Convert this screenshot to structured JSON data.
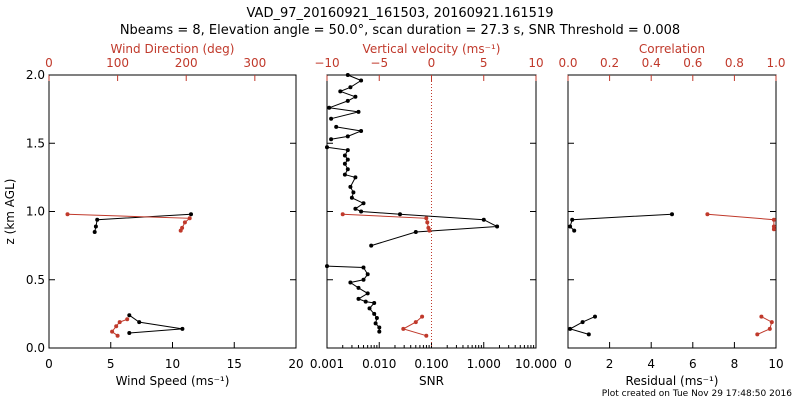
{
  "title_line1": "VAD_97_20160921_161503, 20160921.161519",
  "title_line2": "Nbeams = 8, Elevation angle = 50.0°, scan duration = 27.3 s, SNR Threshold = 0.008",
  "footer": "Plot created on Tue Nov 29 17:48:50 2016",
  "colors": {
    "primary": "#000000",
    "secondary": "#c0392b"
  },
  "chart_data": [
    {
      "type": "line",
      "name": "wind",
      "ylabel": "z (km AGL)",
      "ylim": [
        0,
        2.0
      ],
      "yticks": [
        "0.0",
        "0.5",
        "1.0",
        "1.5",
        "2.0"
      ],
      "ytick_values": [
        0,
        0.5,
        1.0,
        1.5,
        2.0
      ],
      "bottom_axis": {
        "label": "Wind Speed (ms⁻¹)",
        "range": [
          0,
          20
        ],
        "ticks": [
          "0",
          "5",
          "10",
          "15",
          "20"
        ],
        "tick_values": [
          0,
          5,
          10,
          15,
          20
        ]
      },
      "top_axis": {
        "label": "Wind Direction (deg)",
        "range": [
          0,
          360
        ],
        "ticks": [
          "0",
          "100",
          "200",
          "300"
        ],
        "tick_values": [
          0,
          100,
          200,
          300
        ]
      },
      "series": [
        {
          "name": "Wind Speed",
          "axis": "bottom",
          "color": "black",
          "segments": [
            [
              [
                11.5,
                0.98
              ],
              [
                3.9,
                0.94
              ],
              [
                3.8,
                0.89
              ],
              [
                3.7,
                0.85
              ]
            ],
            [
              [
                6.5,
                0.11
              ],
              [
                10.8,
                0.14
              ],
              [
                7.3,
                0.19
              ],
              [
                6.5,
                0.24
              ]
            ]
          ]
        },
        {
          "name": "Wind Direction",
          "axis": "top",
          "color": "red",
          "segments": [
            [
              [
                27,
                0.98
              ],
              [
                205,
                0.95
              ],
              [
                198,
                0.92
              ],
              [
                194,
                0.88
              ],
              [
                192,
                0.86
              ]
            ],
            [
              [
                100,
                0.09
              ],
              [
                92,
                0.12
              ],
              [
                98,
                0.16
              ],
              [
                103,
                0.19
              ],
              [
                114,
                0.21
              ]
            ]
          ]
        }
      ]
    },
    {
      "type": "line",
      "name": "snr",
      "ylim": [
        0,
        2.0
      ],
      "bottom_axis": {
        "label": "SNR",
        "scale": "log",
        "range": [
          0.001,
          10
        ],
        "ticks": [
          "0.001",
          "0.010",
          "0.100",
          "1.000",
          "10.000"
        ],
        "tick_values": [
          0.001,
          0.01,
          0.1,
          1,
          10
        ]
      },
      "top_axis": {
        "label": "Vertical velocity (ms⁻¹)",
        "range": [
          -10,
          10
        ],
        "ticks": [
          "−10",
          "−5",
          "0",
          "5",
          "10"
        ],
        "tick_values": [
          -10,
          -5,
          0,
          5,
          10
        ]
      },
      "reference_line": {
        "axis": "top",
        "value": 0,
        "style": "dotted",
        "color": "red"
      },
      "series": [
        {
          "name": "SNR",
          "axis": "bottom",
          "color": "black",
          "segments": [
            [
              [
                0.0025,
                2.0
              ],
              [
                0.0045,
                1.96
              ],
              [
                0.0028,
                1.91
              ],
              [
                0.0018,
                1.88
              ],
              [
                0.0035,
                1.84
              ],
              [
                0.0025,
                1.81
              ],
              [
                0.0011,
                1.76
              ],
              [
                0.004,
                1.73
              ],
              [
                0.0012,
                1.68
              ]
            ],
            [
              [
                0.0015,
                1.62
              ],
              [
                0.0045,
                1.59
              ],
              [
                0.0025,
                1.55
              ],
              [
                0.0012,
                1.53
              ]
            ],
            [
              [
                0.001,
                1.47
              ],
              [
                0.0025,
                1.45
              ],
              [
                0.0022,
                1.41
              ],
              [
                0.0025,
                1.38
              ],
              [
                0.0022,
                1.35
              ],
              [
                0.0025,
                1.31
              ],
              [
                0.0022,
                1.27
              ],
              [
                0.0035,
                1.25
              ],
              [
                0.0028,
                1.18
              ],
              [
                0.0032,
                1.14
              ],
              [
                0.003,
                1.1
              ],
              [
                0.005,
                1.06
              ],
              [
                0.0035,
                1.02
              ],
              [
                0.0045,
                1.0
              ],
              [
                0.025,
                0.98
              ],
              [
                1.0,
                0.94
              ],
              [
                1.8,
                0.89
              ],
              [
                0.05,
                0.85
              ],
              [
                0.007,
                0.75
              ]
            ],
            [
              [
                0.001,
                0.6
              ],
              [
                0.005,
                0.59
              ],
              [
                0.006,
                0.54
              ],
              [
                0.005,
                0.5
              ],
              [
                0.0028,
                0.48
              ],
              [
                0.004,
                0.44
              ],
              [
                0.006,
                0.4
              ],
              [
                0.004,
                0.36
              ],
              [
                0.0055,
                0.34
              ],
              [
                0.008,
                0.33
              ],
              [
                0.0065,
                0.29
              ],
              [
                0.008,
                0.25
              ],
              [
                0.009,
                0.22
              ],
              [
                0.0085,
                0.18
              ],
              [
                0.01,
                0.15
              ],
              [
                0.01,
                0.12
              ]
            ]
          ]
        },
        {
          "name": "Vertical velocity",
          "axis": "top",
          "color": "red",
          "segments": [
            [
              [
                -8.5,
                0.98
              ],
              [
                -0.5,
                0.95
              ],
              [
                -0.4,
                0.92
              ],
              [
                -0.3,
                0.88
              ],
              [
                -0.2,
                0.86
              ]
            ],
            [
              [
                -0.5,
                0.09
              ],
              [
                -2.7,
                0.14
              ],
              [
                -1.5,
                0.19
              ],
              [
                -0.9,
                0.23
              ]
            ]
          ]
        }
      ]
    },
    {
      "type": "line",
      "name": "residual",
      "ylim": [
        0,
        2.0
      ],
      "bottom_axis": {
        "label": "Residual (ms⁻¹)",
        "range": [
          0,
          10
        ],
        "ticks": [
          "0",
          "2",
          "4",
          "6",
          "8",
          "10"
        ],
        "tick_values": [
          0,
          2,
          4,
          6,
          8,
          10
        ]
      },
      "top_axis": {
        "label": "Correlation",
        "range": [
          0,
          1.0
        ],
        "ticks": [
          "0.0",
          "0.2",
          "0.4",
          "0.6",
          "0.8",
          "1.0"
        ],
        "tick_values": [
          0,
          0.2,
          0.4,
          0.6,
          0.8,
          1.0
        ]
      },
      "series": [
        {
          "name": "Residual",
          "axis": "bottom",
          "color": "black",
          "segments": [
            [
              [
                5.0,
                0.98
              ],
              [
                0.2,
                0.94
              ],
              [
                0.1,
                0.89
              ],
              [
                0.3,
                0.86
              ]
            ],
            [
              [
                1.0,
                0.1
              ],
              [
                0.1,
                0.14
              ],
              [
                0.7,
                0.19
              ],
              [
                1.3,
                0.23
              ]
            ]
          ]
        },
        {
          "name": "Correlation",
          "axis": "top",
          "color": "red",
          "segments": [
            [
              [
                0.67,
                0.98
              ],
              [
                0.99,
                0.94
              ],
              [
                0.99,
                0.89
              ],
              [
                0.99,
                0.87
              ]
            ],
            [
              [
                0.91,
                0.1
              ],
              [
                0.97,
                0.14
              ],
              [
                0.98,
                0.19
              ],
              [
                0.93,
                0.23
              ]
            ]
          ]
        }
      ]
    }
  ]
}
